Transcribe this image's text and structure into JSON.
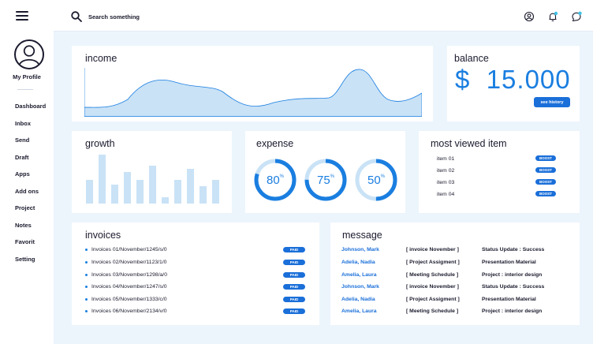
{
  "sidebar": {
    "profile_label": "My Profile",
    "items": [
      {
        "label": "Dashboard"
      },
      {
        "label": "Inbox"
      },
      {
        "label": "Send"
      },
      {
        "label": "Draft"
      },
      {
        "label": "Apps"
      },
      {
        "label": "Add ons"
      },
      {
        "label": "Project"
      },
      {
        "label": "Notes"
      },
      {
        "label": "Favorit"
      },
      {
        "label": "Setting"
      }
    ]
  },
  "header": {
    "search_placeholder": "Search something",
    "icons": [
      "user-icon",
      "bell-icon",
      "chat-icon"
    ]
  },
  "income": {
    "title": "income"
  },
  "balance": {
    "title": "balance",
    "value": "$  15.000",
    "history_label": "see history"
  },
  "growth": {
    "title": "growth"
  },
  "expense": {
    "title": "expense",
    "rings": [
      {
        "value": "80",
        "unit": "%",
        "fraction": 0.8
      },
      {
        "value": "75",
        "unit": "%",
        "fraction": 0.75
      },
      {
        "value": "50",
        "unit": "%",
        "fraction": 0.5
      }
    ]
  },
  "most_viewed": {
    "title": "most viewed item",
    "items": [
      {
        "label": "item 01",
        "button": "BOOST"
      },
      {
        "label": "item 02",
        "button": "BOOST"
      },
      {
        "label": "item 03",
        "button": "BOOST"
      },
      {
        "label": "item 04",
        "button": "BOOST"
      }
    ]
  },
  "invoices": {
    "title": "invoices",
    "items": [
      {
        "label": "Invoices 01/November/1245/s/0",
        "button": "PAID"
      },
      {
        "label": "Invoices 02/November/1123/1/0",
        "button": "PAID"
      },
      {
        "label": "Invoices 03/November/1298/a/0",
        "button": "PAID"
      },
      {
        "label": "Invoices 04/November/1247/s/0",
        "button": "PAID"
      },
      {
        "label": "Invoices 05/November/1333/c/0",
        "button": "PAID"
      },
      {
        "label": "Invoices 06/November/2134/v/0",
        "button": "PAID"
      }
    ]
  },
  "message": {
    "title": "message",
    "items": [
      {
        "name": "Johnson, Mark",
        "subject": "[ invoice November ]",
        "status": "Status Update : Success"
      },
      {
        "name": "Adelia, Nadia",
        "subject": "[ Project Assigment ]",
        "status": "Presentation Material"
      },
      {
        "name": "Amelia, Laura",
        "subject": "[ Meeting Schedule ]",
        "status": "Project : interior design"
      },
      {
        "name": "Johnson, Mark",
        "subject": "[ invoice November ]",
        "status": "Status Update : Success"
      },
      {
        "name": "Adelia, Nadia",
        "subject": "[ Project Assigment ]",
        "status": "Presentation Material"
      },
      {
        "name": "Amelia, Laura",
        "subject": "[ Meeting Schedule ]",
        "status": "Project : interior design"
      }
    ]
  },
  "colors": {
    "accent": "#1a7ee0",
    "button": "#1a6fd9",
    "light_fill": "#c9e2f6",
    "background": "#ecf5fc"
  }
}
